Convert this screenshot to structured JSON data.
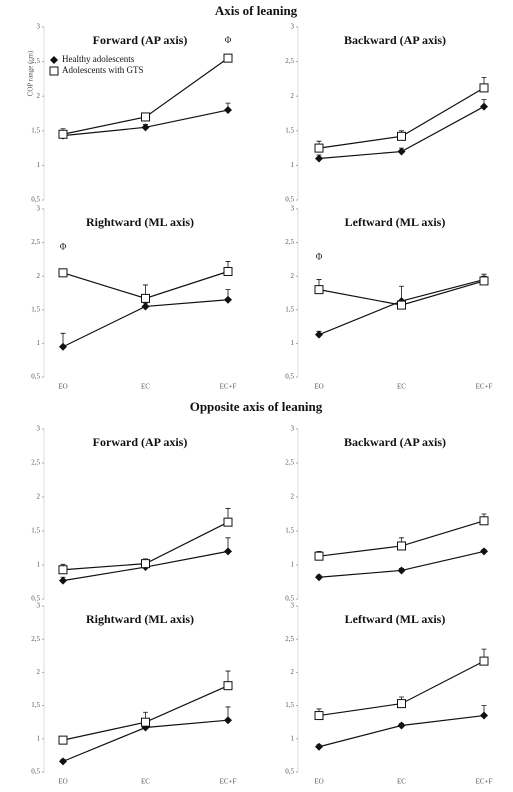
{
  "headings": [
    "Axis of leaning",
    "Opposite axis of leaning"
  ],
  "chart_data": [
    {
      "type": "line",
      "title": "Forward (AP axis)",
      "ylabel": "COP range (cm)",
      "legend": "upper left",
      "categories": [
        null,
        null,
        null
      ],
      "ylim": [
        0.5,
        3
      ],
      "yticks": [
        {
          "value": 0.5,
          "label": "0,5"
        },
        1,
        {
          "value": 1.5,
          "label": "1,5"
        },
        2,
        {
          "value": 2.5,
          "label": "2,5"
        },
        3
      ],
      "series": [
        {
          "name": "Healthy adolescents",
          "color": "#111111",
          "marker": "diamond",
          "values": [
            1.43,
            1.55,
            1.8
          ],
          "errors": [
            0.05,
            0.04,
            0.1
          ]
        },
        {
          "name": "Adolescents with GTS",
          "color": "#111111",
          "marker": "square",
          "values": [
            1.45,
            1.7,
            2.55
          ],
          "errors": [
            0.08,
            0.05,
            0.05
          ]
        }
      ],
      "annotations": [
        {
          "text": "Φ",
          "category": 2
        }
      ]
    },
    {
      "type": "line",
      "title": "Backward (AP axis)",
      "categories": [
        null,
        null,
        null
      ],
      "ylim": [
        0.5,
        3
      ],
      "yticks": [
        {
          "value": 0.5,
          "label": "0,5"
        },
        1,
        {
          "value": 1.5,
          "label": "1,5"
        },
        2,
        {
          "value": 2.5,
          "label": "2,5"
        },
        3
      ],
      "series": [
        {
          "color": "#111111",
          "marker": "diamond",
          "values": [
            1.1,
            1.2,
            1.85
          ],
          "errors": [
            0.05,
            0.05,
            0.1
          ]
        },
        {
          "color": "#111111",
          "marker": "square",
          "values": [
            1.25,
            1.42,
            2.12
          ],
          "errors": [
            0.1,
            0.08,
            0.15
          ]
        }
      ]
    },
    {
      "type": "line",
      "title": "Rightward (ML axis)",
      "categories": [
        "EO",
        "EC",
        "EC+F"
      ],
      "ylim": [
        0.5,
        3
      ],
      "yticks": [
        {
          "value": 0.5,
          "label": "0,5"
        },
        1,
        {
          "value": 1.5,
          "label": "1,5"
        },
        2,
        {
          "value": 2.5,
          "label": "2,5"
        },
        3
      ],
      "series": [
        {
          "color": "#111111",
          "marker": "diamond",
          "values": [
            0.95,
            1.55,
            1.65
          ],
          "errors": [
            0.2,
            0.05,
            0.15
          ]
        },
        {
          "color": "#111111",
          "marker": "square",
          "values": [
            2.05,
            1.67,
            2.07
          ],
          "errors": [
            0.05,
            0.2,
            0.15
          ]
        }
      ],
      "annotations": [
        {
          "text": "Φ",
          "category": 0
        }
      ]
    },
    {
      "type": "line",
      "title": "Leftward (ML axis)",
      "categories": [
        "EO",
        "EC",
        "EC+F"
      ],
      "ylim": [
        0.5,
        3
      ],
      "yticks": [
        {
          "value": 0.5,
          "label": "0,5"
        },
        1,
        {
          "value": 1.5,
          "label": "1,5"
        },
        2,
        {
          "value": 2.5,
          "label": "2,5"
        },
        3
      ],
      "series": [
        {
          "color": "#111111",
          "marker": "diamond",
          "values": [
            1.13,
            1.63,
            1.95
          ],
          "errors": [
            0.05,
            0.22,
            0.05
          ]
        },
        {
          "color": "#111111",
          "marker": "square",
          "values": [
            1.8,
            1.57,
            1.93
          ],
          "errors": [
            0.15,
            0.05,
            0.1
          ]
        }
      ],
      "annotations": [
        {
          "text": "Φ",
          "category": 0
        }
      ]
    },
    {
      "type": "line",
      "title": "Forward (AP axis)",
      "categories": [
        null,
        null,
        null
      ],
      "ylim": [
        0.5,
        3
      ],
      "yticks": [
        {
          "value": 0.5,
          "label": "0,5"
        },
        1,
        {
          "value": 1.5,
          "label": "1,5"
        },
        2,
        {
          "value": 2.5,
          "label": "2,5"
        },
        3
      ],
      "series": [
        {
          "color": "#111111",
          "marker": "diamond",
          "values": [
            0.77,
            0.97,
            1.2
          ],
          "errors": [
            0.05,
            0.05,
            0.2
          ]
        },
        {
          "color": "#111111",
          "marker": "square",
          "values": [
            0.93,
            1.02,
            1.63
          ],
          "errors": [
            0.08,
            0.07,
            0.2
          ]
        }
      ]
    },
    {
      "type": "line",
      "title": "Backward (AP axis)",
      "categories": [
        null,
        null,
        null
      ],
      "ylim": [
        0.5,
        3
      ],
      "yticks": [
        {
          "value": 0.5,
          "label": "0,5"
        },
        1,
        {
          "value": 1.5,
          "label": "1,5"
        },
        2,
        {
          "value": 2.5,
          "label": "2,5"
        },
        3
      ],
      "series": [
        {
          "color": "#111111",
          "marker": "diamond",
          "values": [
            0.82,
            0.92,
            1.2
          ],
          "errors": [
            0.03,
            0.03,
            0.03
          ]
        },
        {
          "color": "#111111",
          "marker": "square",
          "values": [
            1.13,
            1.28,
            1.65
          ],
          "errors": [
            0.07,
            0.12,
            0.1
          ]
        }
      ]
    },
    {
      "type": "line",
      "title": "Rightward (ML axis)",
      "categories": [
        "EO",
        "EC",
        "EC+F"
      ],
      "ylim": [
        0.5,
        3
      ],
      "yticks": [
        {
          "value": 0.5,
          "label": "0,5"
        },
        1,
        {
          "value": 1.5,
          "label": "1,5"
        },
        2,
        {
          "value": 2.5,
          "label": "2,5"
        },
        3
      ],
      "series": [
        {
          "color": "#111111",
          "marker": "diamond",
          "values": [
            0.66,
            1.17,
            1.28
          ],
          "errors": [
            0.03,
            0.05,
            0.2
          ]
        },
        {
          "color": "#111111",
          "marker": "square",
          "values": [
            0.98,
            1.25,
            1.8
          ],
          "errors": [
            0.05,
            0.15,
            0.22
          ]
        }
      ]
    },
    {
      "type": "line",
      "title": "Leftward (ML axis)",
      "categories": [
        "EO",
        "EC",
        "EC+F"
      ],
      "ylim": [
        0.5,
        3
      ],
      "yticks": [
        {
          "value": 0.5,
          "label": "0,5"
        },
        1,
        {
          "value": 1.5,
          "label": "1,5"
        },
        2,
        {
          "value": 2.5,
          "label": "2,5"
        },
        3
      ],
      "series": [
        {
          "color": "#111111",
          "marker": "diamond",
          "values": [
            0.88,
            1.2,
            1.35
          ],
          "errors": [
            0.03,
            0.03,
            0.15
          ]
        },
        {
          "color": "#111111",
          "marker": "square",
          "values": [
            1.35,
            1.53,
            2.17
          ],
          "errors": [
            0.1,
            0.1,
            0.18
          ]
        }
      ]
    }
  ]
}
